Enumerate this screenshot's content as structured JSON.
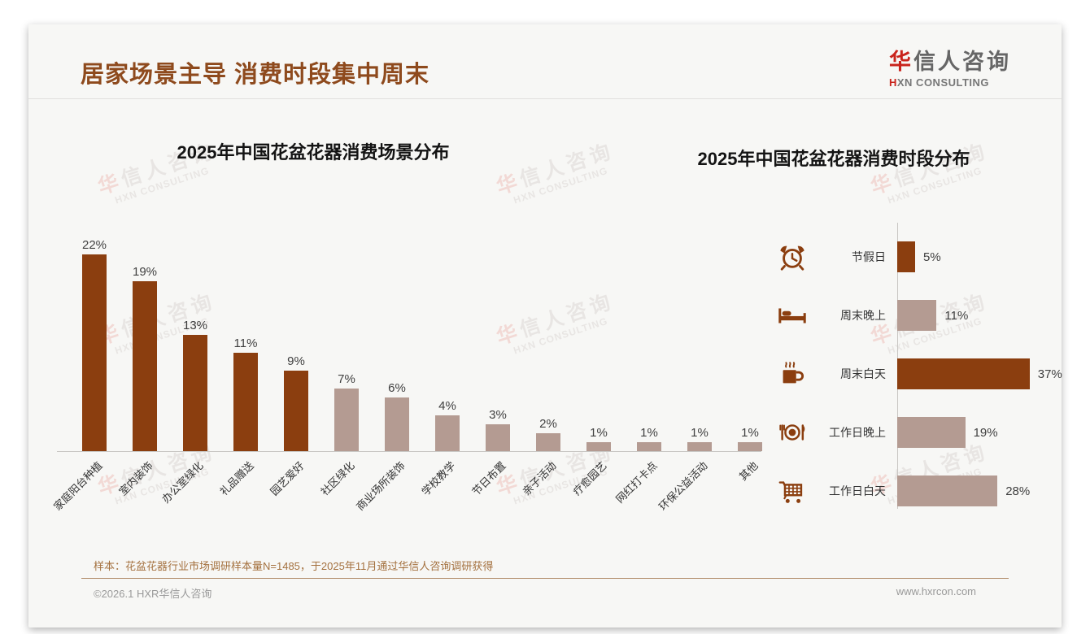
{
  "page": {
    "title": "居家场景主导 消费时段集中周末",
    "logo": {
      "brand_first": "华",
      "brand_rest": "信人咨询",
      "tagline_first": "H",
      "tagline_rest": "XN CONSULTING"
    },
    "watermark": {
      "line1_first": "华",
      "line1_rest": "信人咨询",
      "line2": "HXN CONSULTING"
    },
    "footnote": "样本：花盆花器行业市场调研样本量N=1485，于2025年11月通过华信人咨询调研获得",
    "copyright": "©2026.1 HXR华信人咨询",
    "website": "www.hxrcon.com"
  },
  "colors": {
    "bar_dark": "#8B3E0F",
    "bar_light": "#B49B92",
    "title_brown": "#8E4A1D",
    "logo_red": "#C9241C"
  },
  "chart_data": [
    {
      "type": "bar",
      "orientation": "vertical",
      "title": "2025年中国花盆花器消费场景分布",
      "unit": "%",
      "categories": [
        "家庭阳台种植",
        "室内装饰",
        "办公室绿化",
        "礼品赠送",
        "园艺爱好",
        "社区绿化",
        "商业场所装饰",
        "学校教学",
        "节日布置",
        "亲子活动",
        "疗愈园艺",
        "网红打卡点",
        "环保公益活动",
        "其他"
      ],
      "values": [
        22,
        19,
        13,
        11,
        9,
        7,
        6,
        4,
        3,
        2,
        1,
        1,
        1,
        1
      ],
      "dark_bar_count": 5,
      "ylim": [
        0,
        24
      ],
      "grid": false,
      "legend": "none"
    },
    {
      "type": "bar",
      "orientation": "horizontal",
      "title": "2025年中国花盆花器消费时段分布",
      "unit": "%",
      "categories": [
        "节假日",
        "周末晚上",
        "周末白天",
        "工作日晚上",
        "工作日白天"
      ],
      "values": [
        5,
        11,
        37,
        19,
        28
      ],
      "icons": [
        "alarm-clock-icon",
        "bed-icon",
        "coffee-cup-icon",
        "dining-plate-icon",
        "shopping-cart-icon"
      ],
      "dark_rows": [
        0,
        2
      ],
      "xlim": [
        0,
        40
      ],
      "grid": false,
      "legend": "none"
    }
  ]
}
